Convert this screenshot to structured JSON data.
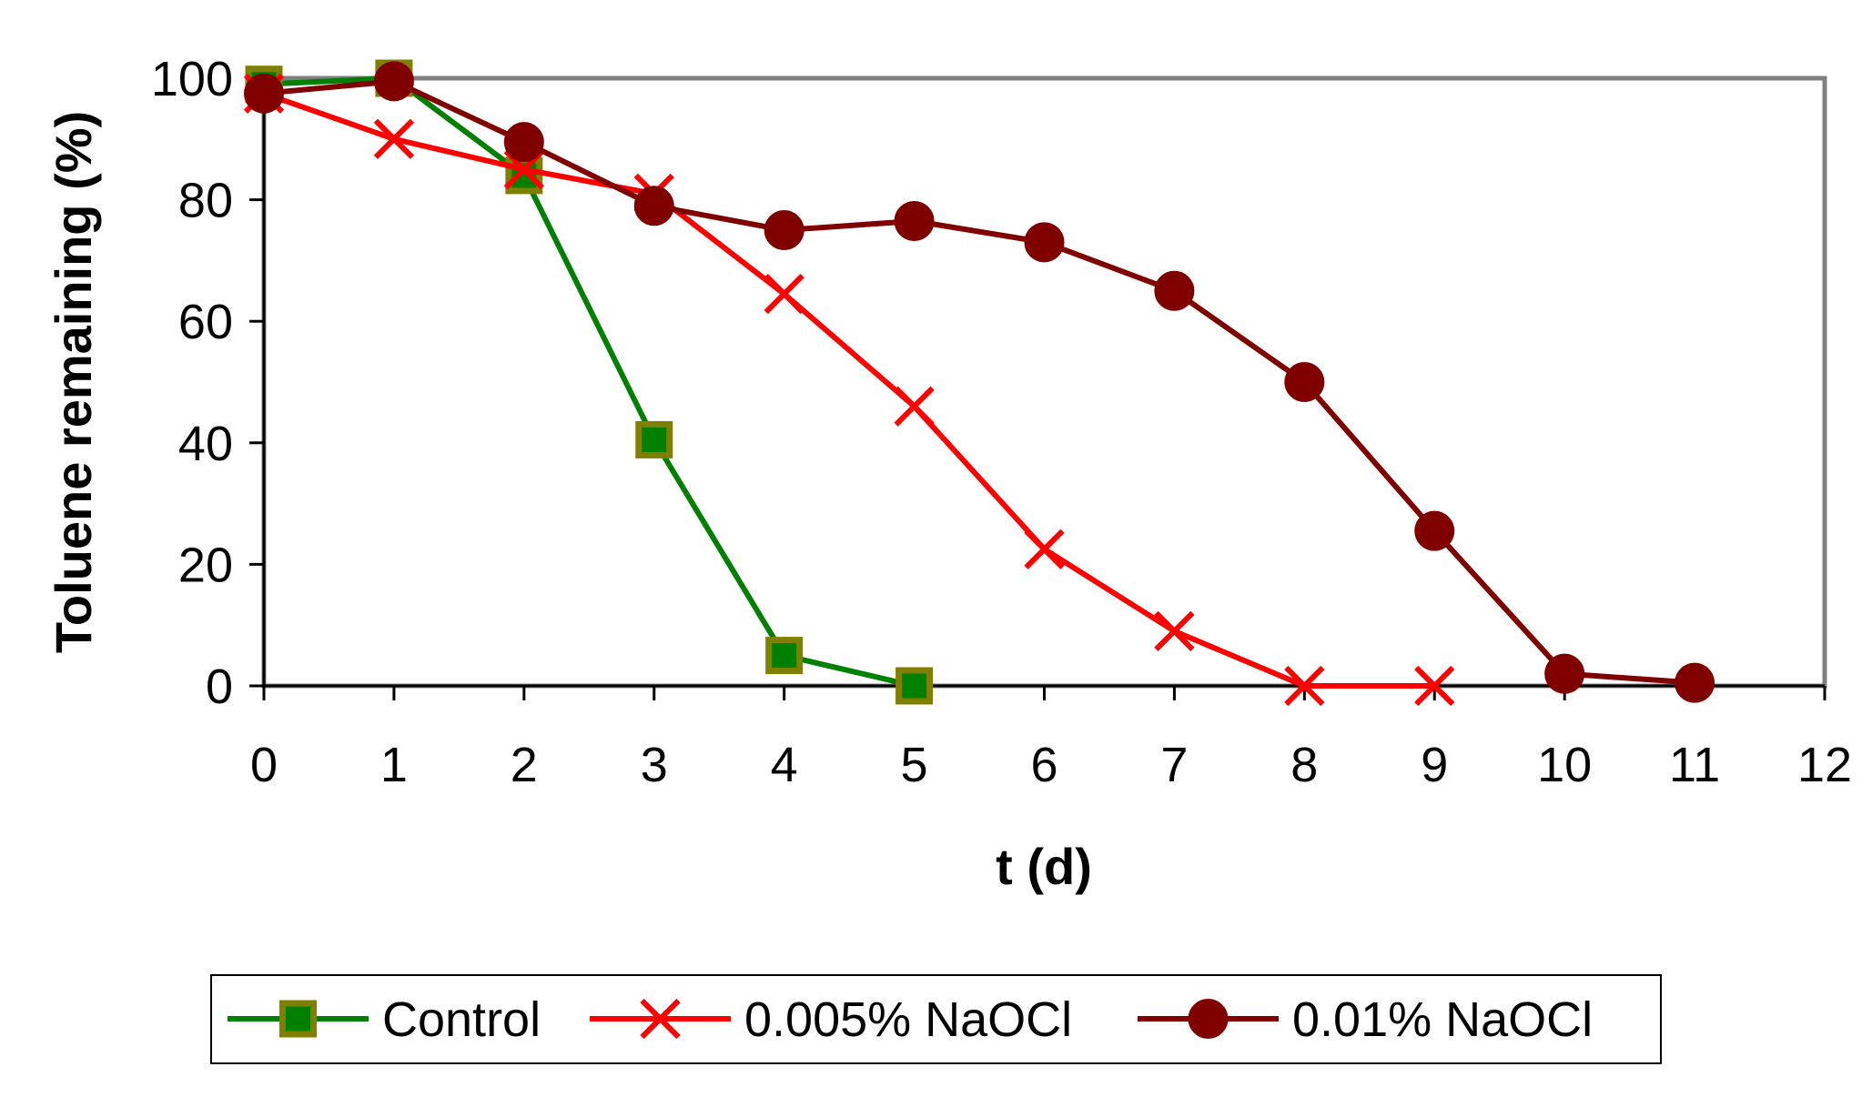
{
  "chart_data": {
    "type": "line",
    "title": "",
    "xlabel": "t (d)",
    "ylabel": "Toluene remaining (%)",
    "xlim": [
      0,
      12
    ],
    "ylim": [
      0,
      100
    ],
    "xticks": [
      0,
      1,
      2,
      3,
      4,
      5,
      6,
      7,
      8,
      9,
      10,
      11,
      12
    ],
    "yticks": [
      0,
      20,
      40,
      60,
      80,
      100
    ],
    "grid": false,
    "legend_position": "bottom",
    "series": [
      {
        "name": "Control",
        "marker": "square",
        "line_color": "#008000",
        "marker_fill": "#008000",
        "marker_edge": "#808000",
        "x": [
          0,
          1,
          2,
          3,
          4,
          5
        ],
        "y": [
          99,
          100,
          84,
          40.5,
          5,
          0
        ]
      },
      {
        "name": "0.005% NaOCl",
        "marker": "x",
        "line_color": "#ff0000",
        "marker_fill": "#ff0000",
        "marker_edge": "#ff0000",
        "x": [
          0,
          1,
          2,
          3,
          4,
          5,
          6,
          7,
          8,
          9
        ],
        "y": [
          97.5,
          90,
          85,
          81,
          64.5,
          46,
          22.5,
          9,
          0,
          0
        ]
      },
      {
        "name": "0.01% NaOCl",
        "marker": "circle",
        "line_color": "#800000",
        "marker_fill": "#800000",
        "marker_edge": "#800000",
        "x": [
          0,
          1,
          2,
          3,
          4,
          5,
          6,
          7,
          8,
          9,
          10,
          11
        ],
        "y": [
          97.5,
          99.5,
          89.5,
          79,
          75,
          76.5,
          73,
          65,
          50,
          25.5,
          2,
          0.5
        ]
      }
    ]
  }
}
